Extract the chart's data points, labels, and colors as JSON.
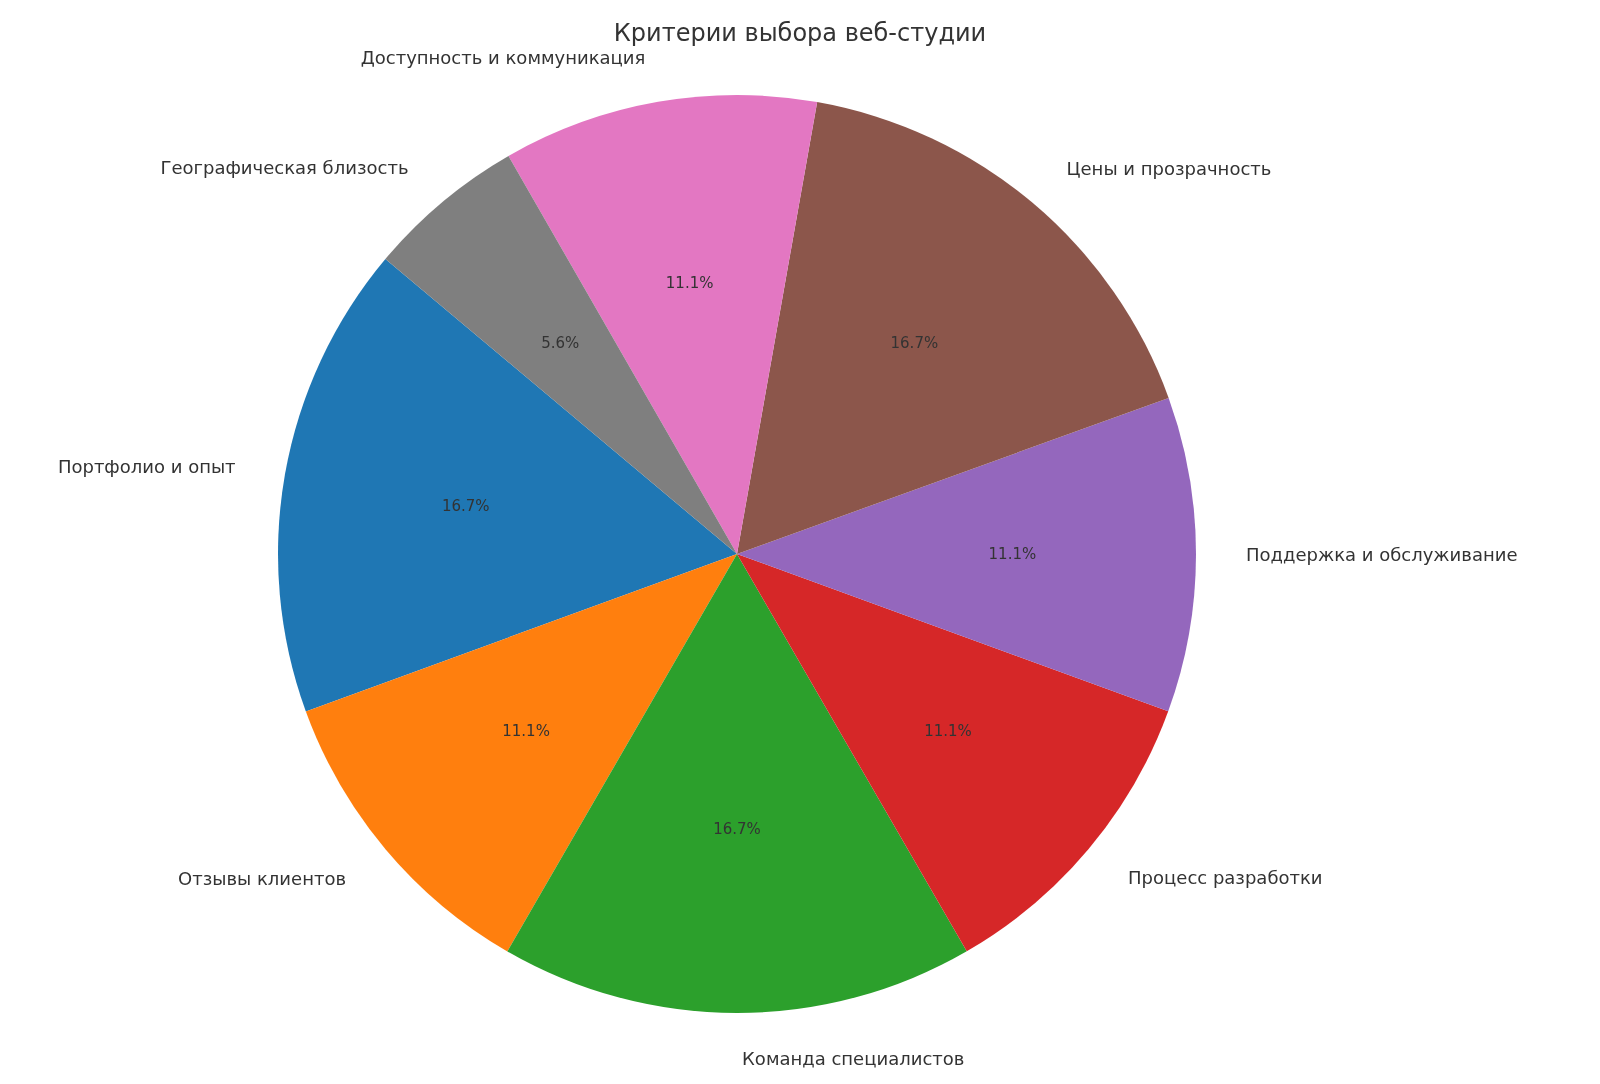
{
  "chart_data": {
    "type": "pie",
    "title": "Критерии выбора веб-студии",
    "categories": [
      "Портфолио и опыт",
      "Отзывы клиентов",
      "Команда специалистов",
      "Процесс разработки",
      "Поддержка и обслуживание",
      "Цены и прозрачность",
      "Доступность и коммуникация",
      "Географическая близость"
    ],
    "values": [
      16.7,
      11.1,
      16.7,
      11.1,
      11.1,
      16.7,
      11.1,
      5.6
    ],
    "value_labels": [
      "16.7%",
      "11.1%",
      "16.7%",
      "11.1%",
      "11.1%",
      "16.7%",
      "11.1%",
      "5.6%"
    ],
    "colors": [
      "#1f77b4",
      "#ff7f0e",
      "#2ca02c",
      "#d62728",
      "#9467bd",
      "#8c564b",
      "#e377c2",
      "#7f7f7f"
    ]
  }
}
